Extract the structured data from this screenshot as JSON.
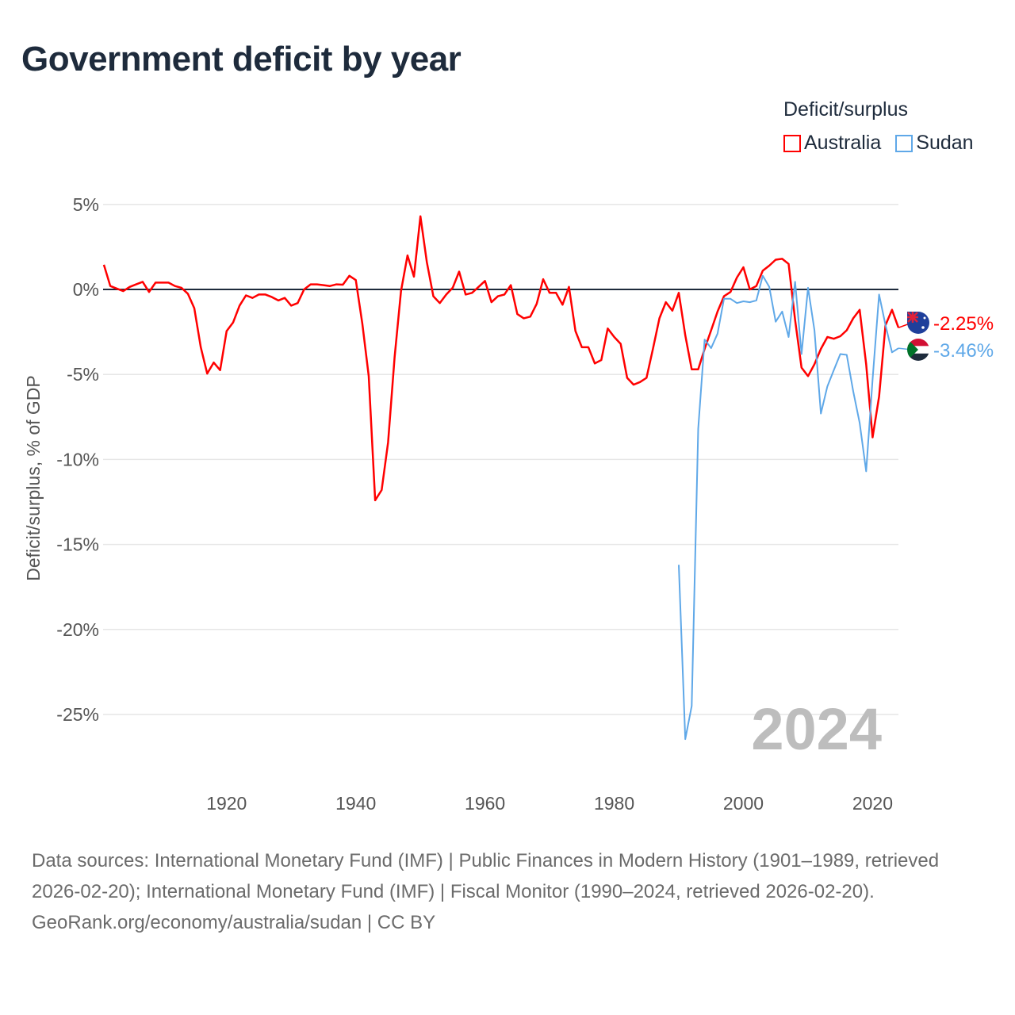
{
  "title": "Government deficit by year",
  "legend": {
    "title": "Deficit/surplus",
    "items": [
      {
        "name": "Australia",
        "color": "#ff0000"
      },
      {
        "name": "Sudan",
        "color": "#5fa8e8"
      }
    ]
  },
  "chart_data": {
    "type": "line",
    "title": "Government deficit by year",
    "xlabel": "",
    "ylabel": "Deficit/surplus, % of GDP",
    "xlim": [
      1901,
      2024
    ],
    "ylim": [
      -27.5,
      5.5
    ],
    "x_ticks": [
      1920,
      1940,
      1960,
      1980,
      2000,
      2020
    ],
    "y_ticks": [
      5,
      0,
      -5,
      -10,
      -15,
      -20,
      -25
    ],
    "y_tick_labels": [
      "5%",
      "0%",
      "-5%",
      "-10%",
      "-15%",
      "-20%",
      "-25%"
    ],
    "grid": true,
    "legend_position": "top-right",
    "year_annotation": "2024",
    "series": [
      {
        "name": "Australia",
        "color": "#ff0000",
        "end_label": "-2.25%",
        "start_year": 1901,
        "values": [
          1.45,
          0.2,
          0.05,
          -0.1,
          0.15,
          0.3,
          0.45,
          -0.15,
          0.4,
          0.4,
          0.4,
          0.2,
          0.1,
          -0.25,
          -1.1,
          -3.4,
          -4.95,
          -4.3,
          -4.75,
          -2.45,
          -1.95,
          -0.95,
          -0.35,
          -0.5,
          -0.3,
          -0.3,
          -0.45,
          -0.65,
          -0.5,
          -0.95,
          -0.8,
          0.0,
          0.3,
          0.3,
          0.25,
          0.2,
          0.3,
          0.28,
          0.8,
          0.55,
          -2.0,
          -5.1,
          -12.4,
          -11.8,
          -9.0,
          -4.0,
          -0.1,
          2.0,
          0.75,
          4.3,
          1.6,
          -0.4,
          -0.8,
          -0.3,
          0.1,
          1.05,
          -0.3,
          -0.2,
          0.15,
          0.5,
          -0.75,
          -0.4,
          -0.3,
          0.25,
          -1.45,
          -1.7,
          -1.6,
          -0.85,
          0.6,
          -0.2,
          -0.2,
          -0.9,
          0.15,
          -2.45,
          -3.4,
          -3.4,
          -4.35,
          -4.15,
          -2.3,
          -2.8,
          -3.2,
          -5.2,
          -5.6,
          -5.45,
          -5.2,
          -3.5,
          -1.7,
          -0.75,
          -1.25,
          -0.2,
          -2.7,
          -4.7,
          -4.7,
          -3.5,
          -2.4,
          -1.3,
          -0.4,
          -0.15,
          0.7,
          1.3,
          0.0,
          0.2,
          1.1,
          1.4,
          1.75,
          1.8,
          1.5,
          -1.8,
          -4.6,
          -5.1,
          -4.4,
          -3.5,
          -2.8,
          -2.9,
          -2.75,
          -2.4,
          -1.7,
          -1.2,
          -4.4,
          -8.7,
          -6.3,
          -2.1,
          -1.2,
          -2.25
        ]
      },
      {
        "name": "Sudan",
        "color": "#5fa8e8",
        "end_label": "-3.46%",
        "start_year": 1990,
        "values": [
          -16.2,
          -26.45,
          -24.5,
          -8.2,
          -2.95,
          -3.45,
          -2.6,
          -0.55,
          -0.55,
          -0.8,
          -0.7,
          -0.75,
          -0.65,
          0.8,
          0.15,
          -1.9,
          -1.3,
          -2.8,
          0.45,
          -3.8,
          0.1,
          -2.4,
          -7.3,
          -5.7,
          -4.75,
          -3.8,
          -3.85,
          -6.0,
          -7.85,
          -10.7,
          -5.3,
          -0.3,
          -2.1,
          -3.7,
          -3.46
        ]
      }
    ]
  },
  "footer": {
    "sources": "Data sources: International Monetary Fund (IMF) | Public Finances in Modern History (1901–1989, retrieved 2026-02-20); International Monetary Fund (IMF) | Fiscal Monitor (1990–2024, retrieved 2026-02-20).",
    "credit": "GeoRank.org/economy/australia/sudan | CC BY"
  }
}
